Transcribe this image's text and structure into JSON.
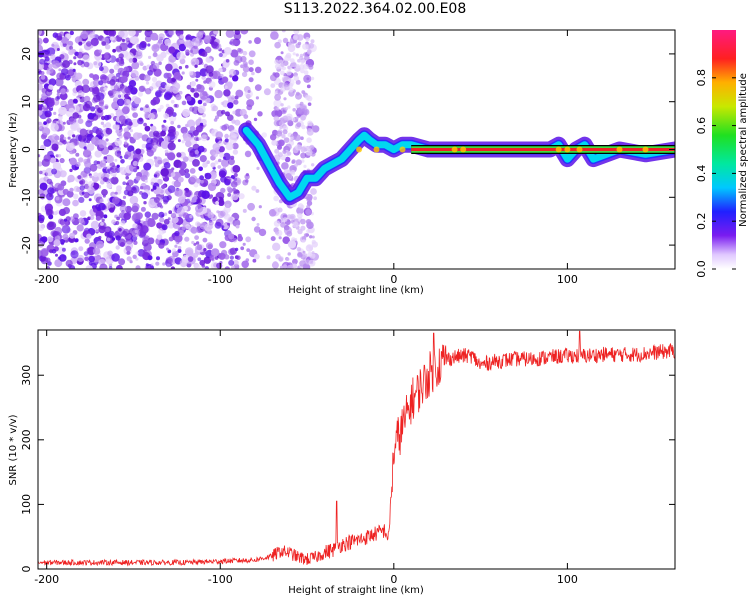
{
  "title": "S113.2022.364.02.00.E08",
  "colors": {
    "signal": "#ee2222",
    "track_outer": "#000000",
    "track_mid": "#33ee44",
    "track_inner": "#ee2222",
    "speckle": "#a46af0"
  },
  "chart_data": [
    {
      "type": "heatmap",
      "xlabel": "Height of straight line (km)",
      "ylabel": "Frequency (Hz)",
      "xlim": [
        -205,
        162
      ],
      "ylim": [
        -25,
        25
      ],
      "xticks": [
        -200,
        -100,
        0,
        100
      ],
      "yticks": [
        20,
        10,
        0,
        -10,
        -20
      ],
      "grid": false,
      "colorbar": {
        "label": "Normalized spectral amplitude",
        "range": [
          0,
          1
        ],
        "ticks": [
          0.0,
          0.2,
          0.4,
          0.6,
          0.8
        ]
      },
      "ridge": {
        "x": [
          -85,
          -78,
          -72,
          -66,
          -60,
          -55,
          -50,
          -45,
          -40,
          -35,
          -30,
          -25,
          -20,
          -17,
          -14,
          -10,
          -5,
          0,
          5,
          10,
          20,
          40,
          90,
          95,
          100,
          105,
          110,
          115,
          130,
          145,
          162
        ],
        "y": [
          4,
          1,
          -3,
          -7,
          -10,
          -9,
          -6,
          -6,
          -4,
          -3,
          -2,
          0,
          2,
          3,
          2,
          1,
          1,
          0,
          1,
          1,
          0,
          0,
          0,
          1,
          -2,
          0,
          1,
          -2,
          0,
          -1,
          0
        ]
      }
    },
    {
      "type": "line",
      "xlabel": "Height of straight line (km)",
      "ylabel": "SNR (10 * v/v)",
      "xlim": [
        -205,
        162
      ],
      "ylim": [
        0,
        370
      ],
      "xticks": [
        -200,
        -100,
        0,
        100
      ],
      "yticks": [
        0,
        100,
        200,
        300
      ],
      "grid": false,
      "series": [
        {
          "x": [
            -205,
            -180,
            -150,
            -120,
            -100,
            -80,
            -70,
            -65,
            -60,
            -55,
            -50,
            -45,
            -40,
            -35,
            -30,
            -25,
            -20,
            -15,
            -10,
            -5,
            -3,
            -1,
            0,
            2,
            5,
            8,
            10,
            13,
            15,
            18,
            20,
            23,
            25,
            30,
            35,
            40,
            45,
            50,
            55,
            60,
            70,
            80,
            90,
            100,
            110,
            120,
            130,
            140,
            150,
            162
          ],
          "y": [
            10,
            10,
            10,
            10,
            12,
            14,
            20,
            28,
            25,
            18,
            15,
            18,
            25,
            30,
            38,
            42,
            45,
            50,
            55,
            60,
            45,
            140,
            180,
            200,
            220,
            240,
            260,
            270,
            280,
            290,
            300,
            310,
            315,
            325,
            328,
            330,
            330,
            315,
            320,
            322,
            325,
            325,
            328,
            330,
            330,
            332,
            332,
            332,
            335,
            338
          ]
        }
      ],
      "spikes": [
        {
          "x": -33,
          "y": 105
        },
        {
          "x": 23,
          "y": 365
        },
        {
          "x": 107,
          "y": 368
        }
      ]
    }
  ]
}
